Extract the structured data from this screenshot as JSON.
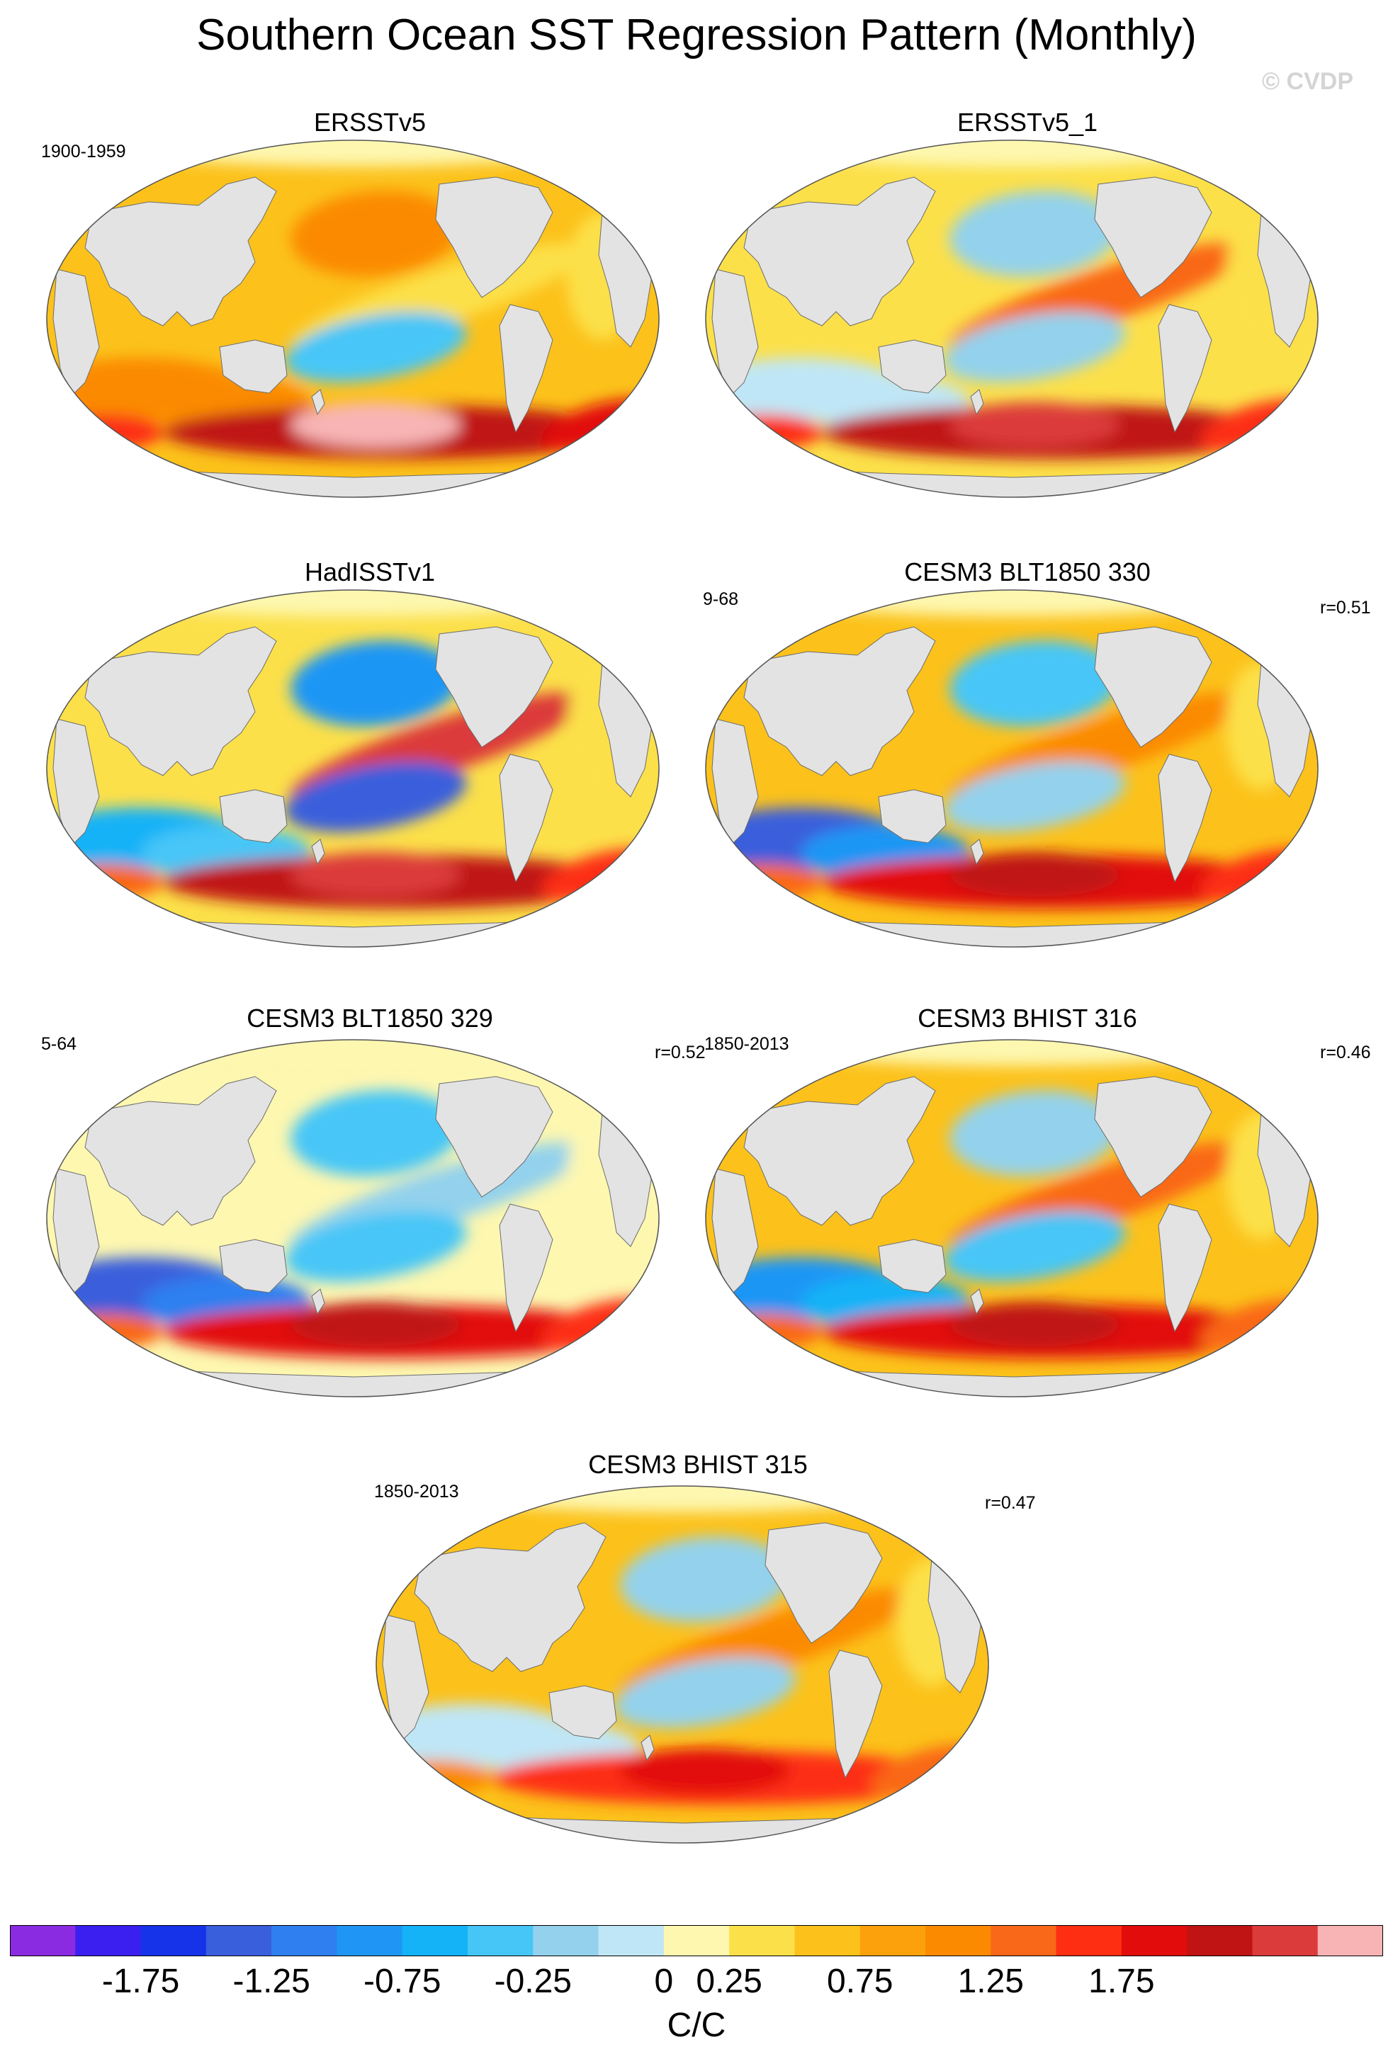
{
  "title": "Southern Ocean SST Regression Pattern (Monthly)",
  "watermark": "© CVDP",
  "panels": [
    {
      "title": "ERSSTv5",
      "left_label": "1900-1959",
      "right_label": "",
      "pattern": {
        "global": 0.55,
        "pacific_band": 0.3,
        "central_pacific_blob": -0.6,
        "southern_band": 1.9,
        "indian_south": 1.0,
        "north_pacific": 0.9
      }
    },
    {
      "title": "ERSSTv5_1",
      "left_label": "",
      "right_label": "",
      "pattern": {
        "global": 0.3,
        "pacific_band": 1.1,
        "central_pacific_blob": -0.4,
        "southern_band": 1.8,
        "indian_south": -0.3,
        "north_pacific": -0.5
      }
    },
    {
      "title": "HadISSTv1",
      "left_label": "",
      "right_label": "",
      "pattern": {
        "global": 0.3,
        "pacific_band": 2.0,
        "central_pacific_blob": -1.6,
        "southern_band": 1.7,
        "indian_south": -0.8,
        "north_pacific": -1.2
      }
    },
    {
      "title": "CESM3 BLT1850 330",
      "left_label": "9-68",
      "right_label": "r=0.51",
      "pattern": {
        "global": 0.35,
        "pacific_band": 0.9,
        "central_pacific_blob": -0.5,
        "southern_band": 1.6,
        "indian_south": -1.5,
        "north_pacific": -0.6
      }
    },
    {
      "title": "CESM3 BLT1850 329",
      "left_label": "5-64",
      "right_label": "r=0.52",
      "pattern": {
        "global": -0.1,
        "pacific_band": -0.4,
        "central_pacific_blob": -0.6,
        "southern_band": 1.6,
        "indian_south": -1.6,
        "north_pacific": -0.7
      }
    },
    {
      "title": "CESM3 BHIST 316",
      "left_label": "1850-2013",
      "right_label": "r=0.46",
      "pattern": {
        "global": 0.45,
        "pacific_band": 1.1,
        "central_pacific_blob": -0.6,
        "southern_band": 1.5,
        "indian_south": -1.2,
        "north_pacific": -0.5
      }
    },
    {
      "title": "CESM3 BHIST 315",
      "left_label": "1850-2013",
      "right_label": "r=0.47",
      "pattern": {
        "global": 0.4,
        "pacific_band": 0.8,
        "central_pacific_blob": -0.4,
        "southern_band": 1.3,
        "indian_south": -0.2,
        "north_pacific": -0.5
      }
    }
  ],
  "colorbar": {
    "colors": [
      "#8a2be2",
      "#3b1ff0",
      "#1633ea",
      "#3a5fdc",
      "#2f7ff0",
      "#1f96f5",
      "#14b2f7",
      "#46c6f7",
      "#93d1ec",
      "#bfe6f6",
      "#fdf7b0",
      "#fce04a",
      "#fcc21b",
      "#fca10c",
      "#fb8a00",
      "#f96818",
      "#fd2e12",
      "#e20c0c",
      "#c01313",
      "#db3b3b",
      "#f8b4b4"
    ],
    "tick_labels": [
      "-1.75",
      "-1.25",
      "-0.75",
      "-0.25",
      "0",
      "0.25",
      "0.75",
      "1.25",
      "1.75"
    ],
    "tick_values": [
      -1.75,
      -1.25,
      -0.75,
      -0.25,
      0,
      0.25,
      0.75,
      1.25,
      1.75
    ],
    "units": "C/C"
  },
  "land_color": "#e3e3e3"
}
